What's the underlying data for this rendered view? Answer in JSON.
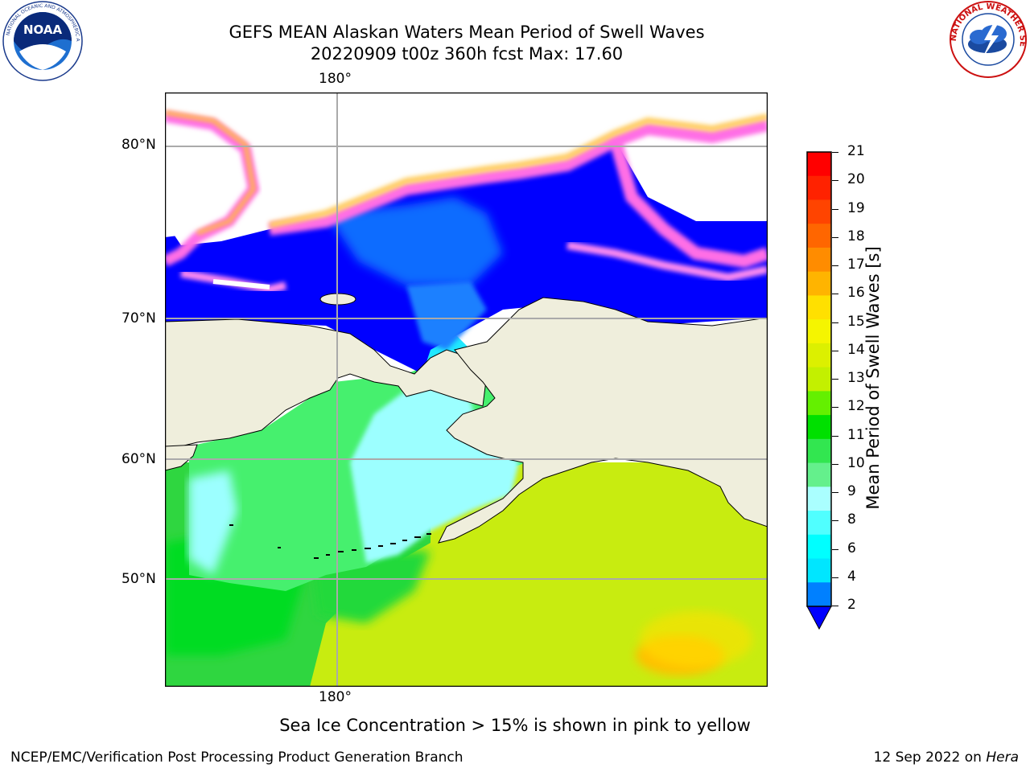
{
  "header": {
    "title_line1": "GEFS MEAN Alaskan Waters Mean Period of Swell Waves",
    "title_line2": "20220909 t00z 360h fcst   Max: 17.60"
  },
  "logos": {
    "left": "NOAA",
    "right_text": "NATIONAL WEATHER SERVICE"
  },
  "map": {
    "lon_label_top": "180°",
    "lon_label_bottom": "180°",
    "lat_labels": [
      "80°N",
      "70°N",
      "60°N",
      "50°N"
    ]
  },
  "colorbar": {
    "label": "Mean Period of Swell Waves [s]",
    "ticks": [
      "21",
      "20",
      "19",
      "18",
      "17",
      "16",
      "15",
      "14",
      "13",
      "12",
      "11",
      "10",
      "9",
      "8",
      "6",
      "4",
      "2"
    ],
    "colors": [
      "#ff0000",
      "#ff2200",
      "#ff4400",
      "#ff6600",
      "#ff8c00",
      "#ffb400",
      "#ffe000",
      "#f5f500",
      "#dcf000",
      "#c3f000",
      "#64f000",
      "#00e000",
      "#32e650",
      "#64f08c",
      "#aaffff",
      "#50ffff",
      "#00ffff",
      "#00e6ff",
      "#0080ff"
    ],
    "extend_color": "#0000ff"
  },
  "note": "Sea Ice Concentration > 15% is shown in pink to yellow",
  "footer": {
    "left": "NCEP/EMC/Verification Post Processing Product Generation Branch",
    "right_prefix": "12 Sep 2022 on ",
    "right_host": "Hera"
  }
}
